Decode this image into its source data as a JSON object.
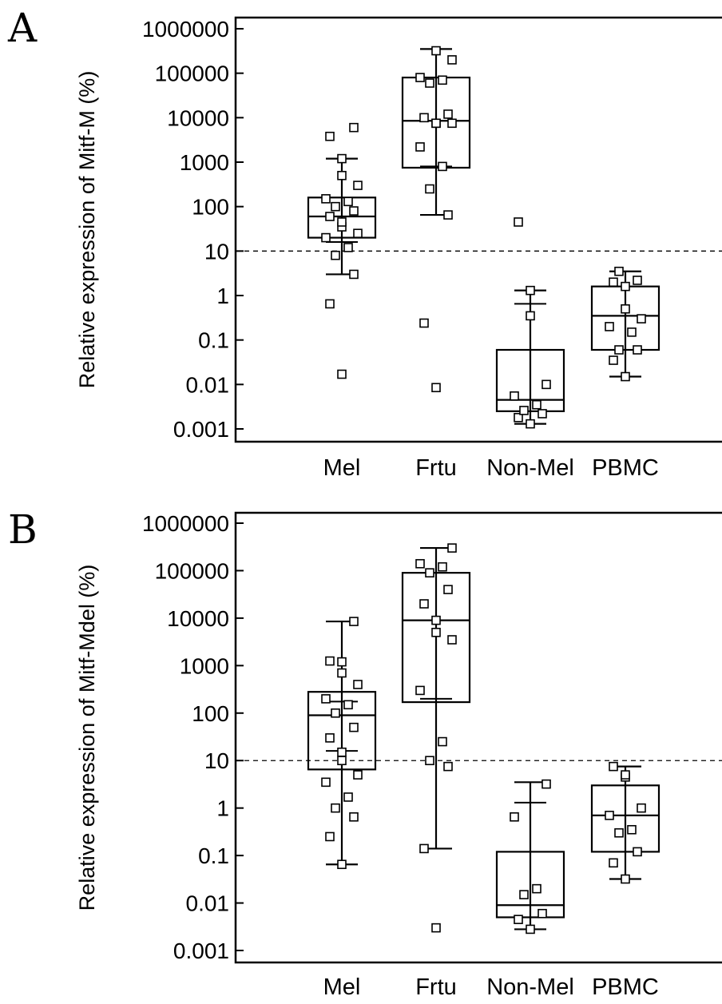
{
  "chart_data": [
    {
      "type": "box",
      "panel_label": "A",
      "title": "",
      "xlabel": "",
      "ylabel": "Relative expression of Mitf-M (%)",
      "y_scale": "log",
      "ylim": [
        0.001,
        1000000
      ],
      "y_ticks": [
        "0.001",
        "0.01",
        "0.1",
        "1",
        "10",
        "100",
        "1000",
        "10000",
        "100000",
        "1000000"
      ],
      "categories": [
        "Mel",
        "Frtu",
        "Non-Mel",
        "PBMC"
      ],
      "reference_line": 10,
      "boxes": [
        {
          "q1": 20,
          "median": 60,
          "q3": 160,
          "whisker_low": 3,
          "whisker_high": 1200
        },
        {
          "q1": 750,
          "median": 8500,
          "q3": 80000,
          "whisker_low": 65,
          "whisker_high": 350000
        },
        {
          "q1": 0.0025,
          "median": 0.0045,
          "q3": 0.06,
          "whisker_low": 0.0013,
          "whisker_high": 1.3
        },
        {
          "q1": 0.06,
          "median": 0.35,
          "q3": 1.6,
          "whisker_low": 0.015,
          "whisker_high": 3.5
        }
      ],
      "extra_caps": [
        {
          "group": 0,
          "y": 16
        },
        {
          "group": 1,
          "y": 800
        },
        {
          "group": 2,
          "y": 0.65
        }
      ],
      "points": [
        [
          0.017,
          0.65,
          3,
          8,
          12,
          20,
          25,
          35,
          45,
          60,
          80,
          100,
          130,
          150,
          300,
          500,
          1200,
          3800,
          6000
        ],
        [
          0.0085,
          0.24,
          65,
          250,
          800,
          2200,
          7500,
          7500,
          7500,
          10000,
          12000,
          60000,
          70000,
          80000,
          200000,
          320000
        ],
        [
          0.0013,
          0.0018,
          0.0022,
          0.0026,
          0.0035,
          0.0055,
          0.01,
          0.35,
          1.3,
          45
        ],
        [
          0.015,
          0.035,
          0.06,
          0.06,
          0.15,
          0.2,
          0.3,
          0.5,
          1.6,
          2,
          2.2,
          3.5
        ]
      ]
    },
    {
      "type": "box",
      "panel_label": "B",
      "title": "",
      "xlabel": "",
      "ylabel": "Relative expression of Mitf-Mdel (%)",
      "y_scale": "log",
      "ylim": [
        0.001,
        1000000
      ],
      "y_ticks": [
        "0.001",
        "0.01",
        "0.1",
        "1",
        "10",
        "100",
        "1000",
        "10000",
        "100000",
        "1000000"
      ],
      "categories": [
        "Mel",
        "Frtu",
        "Non-Mel",
        "PBMC"
      ],
      "reference_line": 10,
      "boxes": [
        {
          "q1": 6.5,
          "median": 90,
          "q3": 280,
          "whisker_low": 0.065,
          "whisker_high": 8500
        },
        {
          "q1": 170,
          "median": 9000,
          "q3": 90000,
          "whisker_low": 0.14,
          "whisker_high": 300000
        },
        {
          "q1": 0.005,
          "median": 0.009,
          "q3": 0.12,
          "whisker_low": 0.0028,
          "whisker_high": 3.5
        },
        {
          "q1": 0.12,
          "median": 0.7,
          "q3": 3,
          "whisker_low": 0.032,
          "whisker_high": 7.5
        }
      ],
      "extra_caps": [
        {
          "group": 0,
          "y": 16
        },
        {
          "group": 0,
          "y": 175
        },
        {
          "group": 1,
          "y": 200
        },
        {
          "group": 2,
          "y": 1.3
        },
        {
          "group": 2,
          "y": 0.005
        }
      ],
      "points": [
        [
          0.065,
          0.25,
          0.65,
          1,
          1.7,
          3.5,
          5,
          10,
          15,
          30,
          50,
          100,
          150,
          200,
          400,
          700,
          1200,
          1250,
          8500
        ],
        [
          0.003,
          0.14,
          7.5,
          10,
          25,
          300,
          3500,
          5000,
          9000,
          20000,
          40000,
          90000,
          120000,
          140000,
          300000
        ],
        [
          0.0028,
          0.0045,
          0.006,
          0.015,
          0.02,
          0.65,
          3.2
        ],
        [
          0.032,
          0.07,
          0.12,
          0.3,
          0.35,
          0.7,
          1,
          4.5,
          5,
          7.5
        ]
      ]
    }
  ]
}
